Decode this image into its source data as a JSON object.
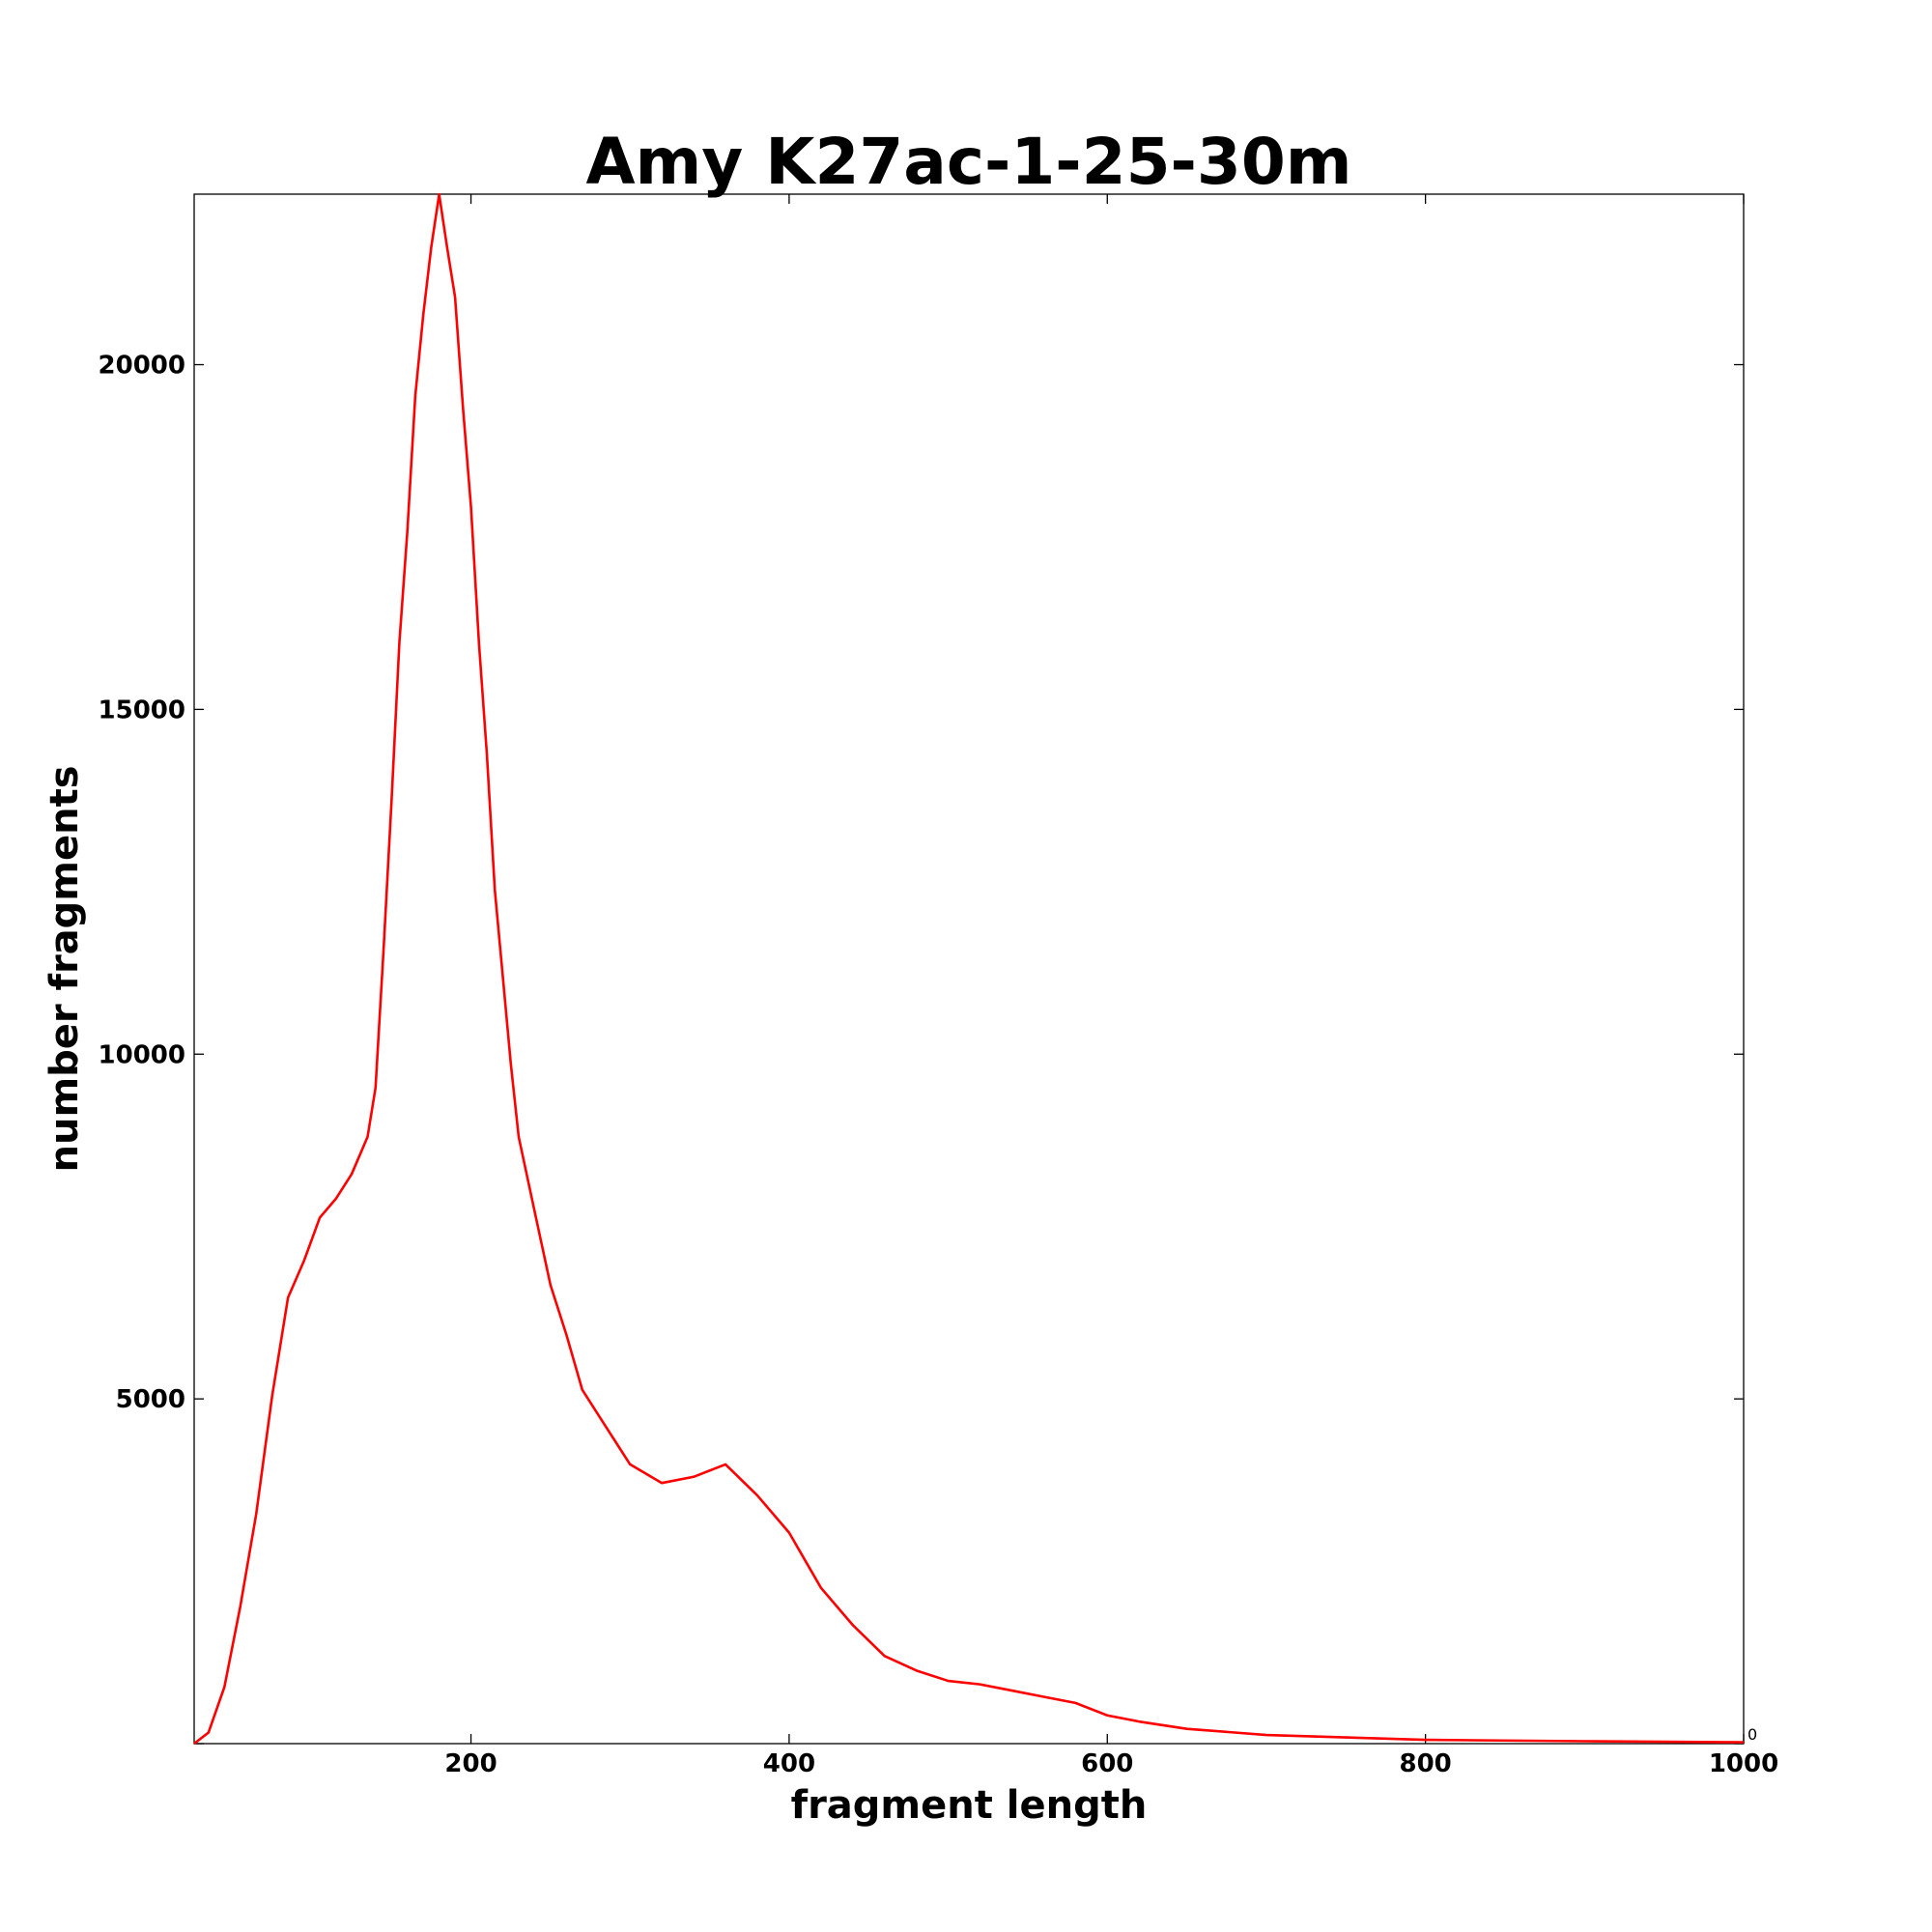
{
  "chart_data": {
    "type": "line",
    "title": "Amy K27ac-1-25-30m",
    "x_label": "fragment length",
    "y_label": "number fragments",
    "x": [
      26,
      35,
      45,
      55,
      65,
      75,
      85,
      95,
      105,
      115,
      125,
      135,
      140,
      145,
      150,
      155,
      160,
      165,
      170,
      175,
      180,
      185,
      190,
      195,
      200,
      205,
      210,
      215,
      220,
      225,
      230,
      240,
      250,
      260,
      270,
      280,
      290,
      300,
      320,
      340,
      360,
      380,
      400,
      420,
      440,
      460,
      480,
      500,
      520,
      540,
      560,
      580,
      600,
      620,
      650,
      700,
      750,
      800,
      900,
      1000
    ],
    "series": [
      {
        "name": "fragments",
        "color": "#ff0000",
        "values": [
          0,
          160,
          820,
          1990,
          3330,
          5040,
          6470,
          7000,
          7630,
          7900,
          8260,
          8800,
          9510,
          11490,
          13640,
          15970,
          17580,
          19550,
          20720,
          21700,
          22470,
          21700,
          20980,
          19370,
          17940,
          15970,
          14350,
          12380,
          11130,
          9870,
          8800,
          7720,
          6650,
          5930,
          5130,
          4770,
          4410,
          4050,
          3780,
          3870,
          4050,
          3600,
          3060,
          2260,
          1720,
          1270,
          1060,
          910,
          860,
          770,
          680,
          590,
          410,
          320,
          215,
          125,
          90,
          55,
          35,
          20
        ]
      }
    ],
    "xlim": [
      26,
      1000
    ],
    "ylim": [
      0,
      22473
    ],
    "xticks": [
      200,
      400,
      600,
      800,
      1000
    ],
    "yticks": [
      0,
      5000,
      10000,
      15000,
      20000
    ]
  }
}
